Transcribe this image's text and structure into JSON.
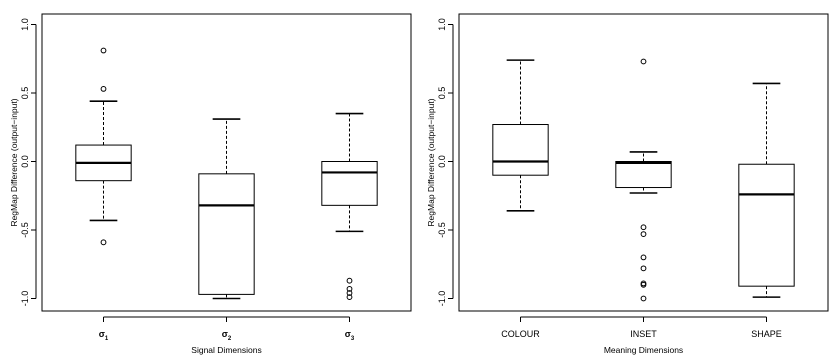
{
  "chart_data": [
    {
      "type": "box",
      "xlabel": "Signal Dimensions",
      "ylabel": "RegMap Difference (output−input)",
      "ylim": [
        -1.1,
        1.0
      ],
      "y_ticks": [
        "-1.0",
        "-0.5",
        "0.0",
        "0.5",
        "1.0"
      ],
      "grid": false,
      "categories": [
        {
          "base": "σ",
          "sub": "1"
        },
        {
          "base": "σ",
          "sub": "2"
        },
        {
          "base": "σ",
          "sub": "3"
        }
      ],
      "boxes": [
        {
          "whisker_low": -0.43,
          "q1": -0.14,
          "median": -0.01,
          "q3": 0.12,
          "whisker_high": 0.44,
          "outliers": [
            0.81,
            0.53,
            -0.59
          ]
        },
        {
          "whisker_low": -1.0,
          "q1": -0.97,
          "median": -0.32,
          "q3": -0.09,
          "whisker_high": 0.31,
          "outliers": []
        },
        {
          "whisker_low": -0.51,
          "q1": -0.32,
          "median": -0.08,
          "q3": 0.0,
          "whisker_high": 0.35,
          "outliers": [
            -0.87,
            -0.93,
            -0.96,
            -0.99
          ]
        }
      ]
    },
    {
      "type": "box",
      "xlabel": "Meaning Dimensions",
      "ylabel": "RegMap Difference (output−input)",
      "ylim": [
        -1.1,
        1.0
      ],
      "y_ticks": [
        "-1.0",
        "-0.5",
        "0.0",
        "0.5",
        "1.0"
      ],
      "grid": false,
      "categories": [
        {
          "base": "COLOUR",
          "sub": ""
        },
        {
          "base": "INSET",
          "sub": ""
        },
        {
          "base": "SHAPE",
          "sub": ""
        }
      ],
      "boxes": [
        {
          "whisker_low": -0.36,
          "q1": -0.1,
          "median": 0.0,
          "q3": 0.27,
          "whisker_high": 0.74,
          "outliers": []
        },
        {
          "whisker_low": -0.23,
          "q1": -0.19,
          "median": -0.01,
          "q3": 0.0,
          "whisker_high": 0.07,
          "outliers": [
            0.73,
            -0.48,
            -0.53,
            -0.7,
            -0.78,
            -0.89,
            -0.9,
            -1.0
          ]
        },
        {
          "whisker_low": -0.99,
          "q1": -0.91,
          "median": -0.24,
          "q3": -0.02,
          "whisker_high": 0.57,
          "outliers": []
        }
      ]
    }
  ]
}
